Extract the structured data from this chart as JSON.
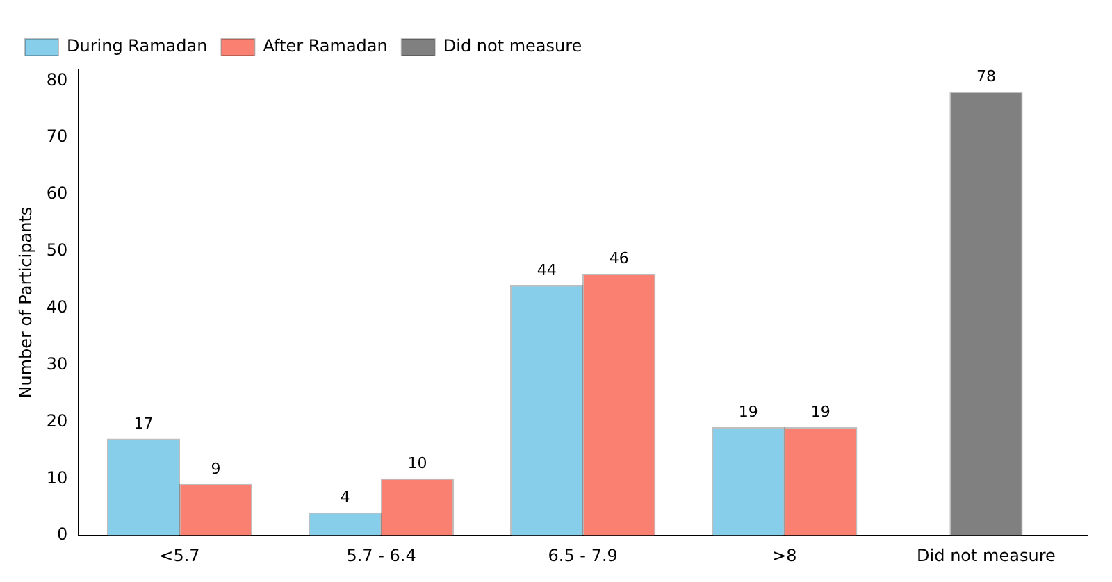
{
  "chart_data": {
    "type": "bar",
    "ylabel": "Number of Participants",
    "categories": [
      "<5.7",
      "5.7 - 6.4",
      "6.5 - 7.9",
      ">8",
      "Did not measure"
    ],
    "series": [
      {
        "name": "During Ramadan",
        "color": "#87ceeb",
        "values": [
          17,
          4,
          44,
          19,
          null
        ]
      },
      {
        "name": "After Ramadan",
        "color": "#fa8072",
        "values": [
          9,
          10,
          46,
          19,
          null
        ]
      },
      {
        "name": "Did not measure",
        "color": "#808080",
        "values": [
          null,
          null,
          null,
          null,
          78
        ]
      }
    ],
    "ylim": [
      0,
      82
    ],
    "yticks": [
      0,
      10,
      20,
      30,
      40,
      50,
      60,
      70,
      80
    ],
    "data_labels": true,
    "legend": "top left",
    "grid": false
  }
}
